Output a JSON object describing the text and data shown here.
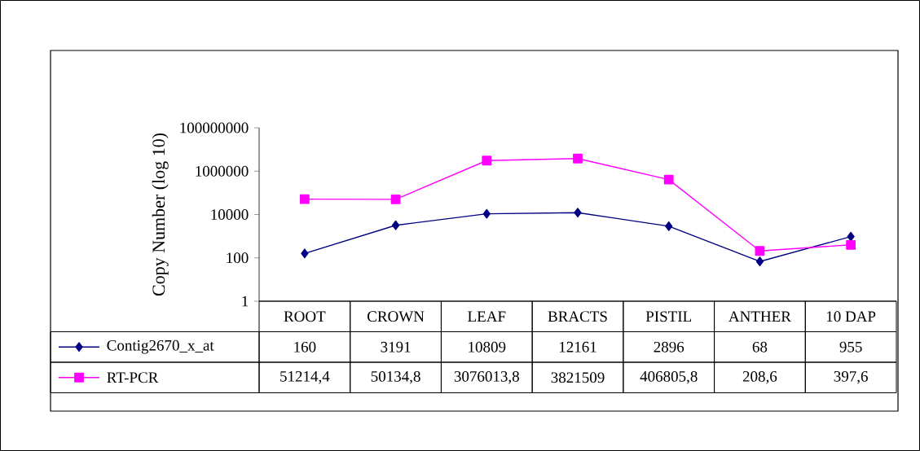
{
  "chart_data": {
    "type": "line",
    "ylabel": "Copy Number (log 10)",
    "categories": [
      "ROOT",
      "CROWN",
      "LEAF",
      "BRACTS",
      "PISTIL",
      "ANTHER",
      "10 DAP"
    ],
    "series": [
      {
        "name": "Contig2670_x_at",
        "color": "#000080",
        "marker": "diamond",
        "values": [
          160,
          3191,
          10809,
          12161,
          2896,
          68,
          955
        ],
        "value_labels": [
          "160",
          "3191",
          "10809",
          "12161",
          "2896",
          "68",
          "955"
        ]
      },
      {
        "name": "RT-PCR",
        "color": "#ff00ff",
        "marker": "square",
        "values": [
          51214.4,
          50134.8,
          3076013.8,
          3821509,
          406805.8,
          208.6,
          397.6
        ],
        "value_labels": [
          "51214,4",
          "50134,8",
          "3076013,8",
          "3821509",
          "406805,8",
          "208,6",
          "397,6"
        ]
      }
    ],
    "legend": "bottom",
    "log": "y",
    "ylim": [
      1,
      100000000
    ],
    "yticks": [
      1,
      100,
      10000,
      1000000,
      100000000
    ],
    "grid": false
  }
}
